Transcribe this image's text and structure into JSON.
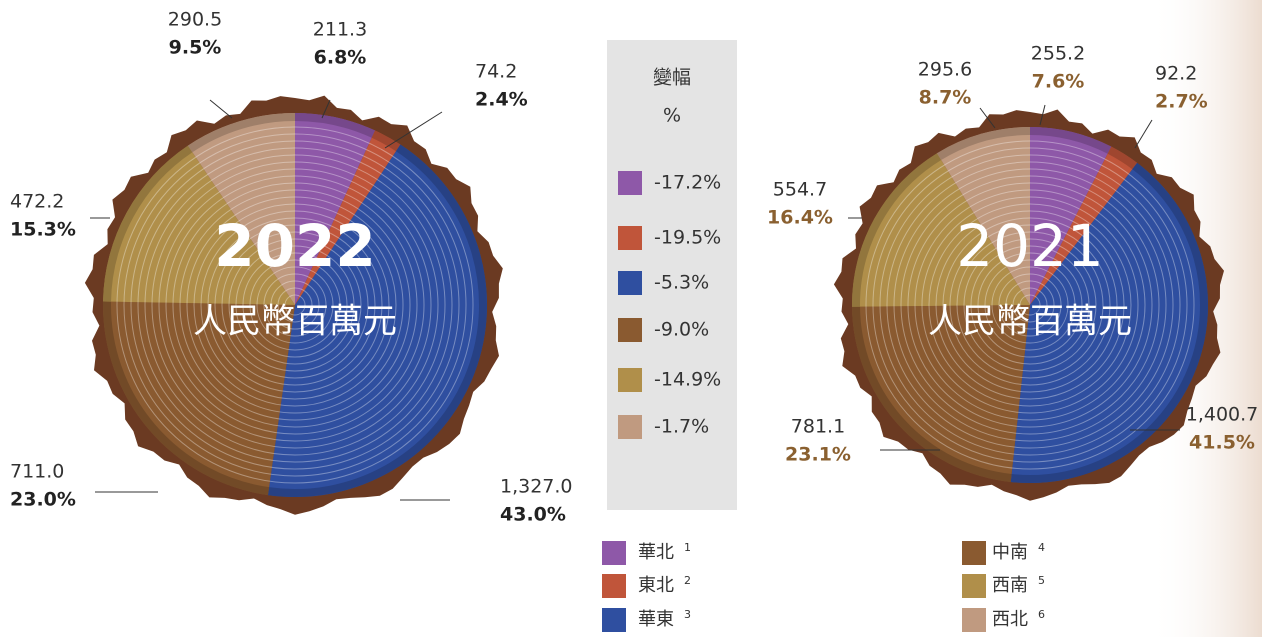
{
  "chart_data": [
    {
      "type": "pie",
      "title": "2022",
      "subtitle": "人民幣百萬元",
      "categories": [
        "華北",
        "東北",
        "華東",
        "中南",
        "西南",
        "西北"
      ],
      "notes": [
        "1",
        "2",
        "3",
        "4",
        "5",
        "6"
      ],
      "colors": [
        "#8e58a8",
        "#c0553a",
        "#2f4fa0",
        "#8a5a30",
        "#b08f4a",
        "#c09a80"
      ],
      "values": [
        211.3,
        74.2,
        1327.0,
        711.0,
        472.2,
        290.5
      ],
      "value_labels": [
        "211.3",
        "74.2",
        "1,327.0",
        "711.0",
        "472.2",
        "290.5"
      ],
      "percentages": [
        6.8,
        2.4,
        43.0,
        23.0,
        15.3,
        9.5
      ],
      "percentage_labels": [
        "6.8%",
        "2.4%",
        "43.0%",
        "23.0%",
        "15.3%",
        "9.5%"
      ]
    },
    {
      "type": "pie",
      "title": "2021",
      "subtitle": "人民幣百萬元",
      "categories": [
        "華北",
        "東北",
        "華東",
        "中南",
        "西南",
        "西北"
      ],
      "colors": [
        "#8e58a8",
        "#c0553a",
        "#2f4fa0",
        "#8a5a30",
        "#b08f4a",
        "#c09a80"
      ],
      "values": [
        255.2,
        92.2,
        1400.7,
        781.1,
        554.7,
        295.6
      ],
      "value_labels": [
        "255.2",
        "92.2",
        "1,400.7",
        "781.1",
        "554.7",
        "295.6"
      ],
      "percentages": [
        7.6,
        2.7,
        41.5,
        23.1,
        16.4,
        8.7
      ],
      "percentage_labels": [
        "7.6%",
        "2.7%",
        "41.5%",
        "23.1%",
        "16.4%",
        "8.7%"
      ]
    }
  ],
  "change_panel": {
    "title": "變幅",
    "unit": "%",
    "values": [
      -17.2,
      -19.5,
      -5.3,
      -9.0,
      -14.9,
      -1.7
    ],
    "value_labels": [
      "-17.2%",
      "-19.5%",
      "-5.3%",
      "-9.0%",
      "-14.9%",
      "-1.7%"
    ]
  }
}
